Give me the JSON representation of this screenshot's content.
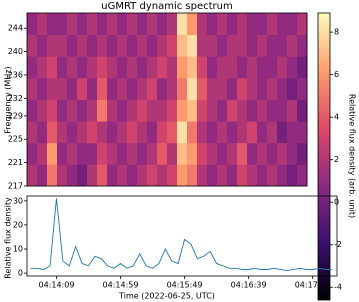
{
  "chart_data": [
    {
      "type": "heatmap",
      "title": "uGMRT dynamic spectrum",
      "ylabel": "Frequency (MHz)",
      "ylim": [
        217,
        246.6
      ],
      "yticks": [
        217,
        221,
        225,
        229,
        232,
        236,
        240,
        244
      ],
      "z": [
        [
          2,
          1,
          5,
          2,
          1,
          0,
          2,
          4,
          1,
          2,
          1,
          2,
          3,
          2,
          3,
          6,
          5,
          2,
          1,
          2,
          1,
          3,
          2,
          1,
          2,
          1,
          0,
          1
        ],
        [
          1,
          2,
          6,
          1,
          2,
          1,
          1,
          3,
          2,
          1,
          2,
          1,
          2,
          4,
          2,
          7,
          6,
          3,
          2,
          1,
          2,
          4,
          1,
          2,
          1,
          2,
          1,
          0
        ],
        [
          2,
          1,
          4,
          2,
          1,
          2,
          3,
          2,
          1,
          2,
          3,
          2,
          1,
          3,
          4,
          8,
          5,
          2,
          1,
          2,
          1,
          2,
          3,
          1,
          2,
          0,
          1,
          1
        ],
        [
          1,
          2,
          3,
          1,
          2,
          1,
          2,
          5,
          2,
          1,
          2,
          3,
          2,
          2,
          3,
          6,
          7,
          3,
          2,
          1,
          3,
          2,
          1,
          2,
          1,
          1,
          2,
          0
        ],
        [
          2,
          1,
          2,
          2,
          1,
          3,
          1,
          4,
          1,
          2,
          1,
          2,
          3,
          1,
          2,
          5,
          8,
          4,
          2,
          2,
          1,
          3,
          2,
          1,
          2,
          1,
          0,
          1
        ],
        [
          1,
          2,
          3,
          1,
          2,
          1,
          2,
          3,
          2,
          1,
          2,
          1,
          2,
          3,
          2,
          6,
          7,
          3,
          1,
          2,
          2,
          1,
          2,
          1,
          1,
          2,
          1,
          0
        ],
        [
          2,
          1,
          2,
          2,
          1,
          2,
          1,
          2,
          1,
          2,
          1,
          2,
          1,
          2,
          3,
          7,
          8,
          2,
          2,
          1,
          2,
          2,
          1,
          2,
          1,
          1,
          2,
          1
        ],
        [
          1,
          2,
          1,
          1,
          2,
          1,
          2,
          1,
          2,
          1,
          2,
          1,
          2,
          1,
          2,
          8,
          6,
          2,
          1,
          2,
          1,
          2,
          1,
          1,
          2,
          1,
          1,
          2
        ]
      ],
      "colorscale": [
        "#000004",
        "#3b0f70",
        "#8c2981",
        "#de4968",
        "#fe9f6d",
        "#fcfdbf"
      ],
      "colorbar": {
        "label": "Relative flux density (arb. unit)",
        "lim": [
          -4.6,
          8.9
        ],
        "ticks": [
          -4,
          -2,
          0,
          2,
          4,
          6,
          8
        ]
      }
    },
    {
      "type": "line",
      "ylabel": "Relative flux density",
      "xlabel": "Time (2022-06-25, UTC)",
      "xlim": [
        "04:13:46",
        "04:17:48"
      ],
      "xticks": [
        "04:14:09",
        "04:14:59",
        "04:15:49",
        "04:16:39",
        "04:17:29"
      ],
      "ylim": [
        -1.2,
        32
      ],
      "yticks": [
        0,
        10,
        20,
        30
      ],
      "x": [
        "04:13:49",
        "04:13:54",
        "04:13:59",
        "04:14:04",
        "04:14:09",
        "04:14:14",
        "04:14:19",
        "04:14:24",
        "04:14:29",
        "04:14:34",
        "04:14:39",
        "04:14:44",
        "04:14:49",
        "04:14:54",
        "04:14:59",
        "04:15:04",
        "04:15:09",
        "04:15:14",
        "04:15:19",
        "04:15:24",
        "04:15:29",
        "04:15:34",
        "04:15:39",
        "04:15:44",
        "04:15:49",
        "04:15:54",
        "04:15:59",
        "04:16:04",
        "04:16:09",
        "04:16:14",
        "04:16:19",
        "04:16:24",
        "04:16:29",
        "04:16:34",
        "04:16:39",
        "04:16:44",
        "04:16:49",
        "04:16:54",
        "04:16:59",
        "04:17:04",
        "04:17:09",
        "04:17:14",
        "04:17:19",
        "04:17:24",
        "04:17:29",
        "04:17:34",
        "04:17:39",
        "04:17:44"
      ],
      "series": [
        {
          "color": "#1f77b4",
          "values": [
            2,
            2,
            1.5,
            3,
            31,
            5,
            3,
            11,
            4,
            3,
            7,
            6,
            3,
            2,
            4,
            2,
            3,
            8,
            3,
            2,
            4,
            10,
            5,
            4,
            14,
            12,
            6,
            7,
            9,
            4,
            3,
            2,
            2,
            1.5,
            1.5,
            2,
            1.5,
            1.5,
            2,
            1.5,
            1,
            1.5,
            2,
            1.5,
            1.5,
            2,
            1.5,
            1.5
          ]
        }
      ]
    }
  ]
}
